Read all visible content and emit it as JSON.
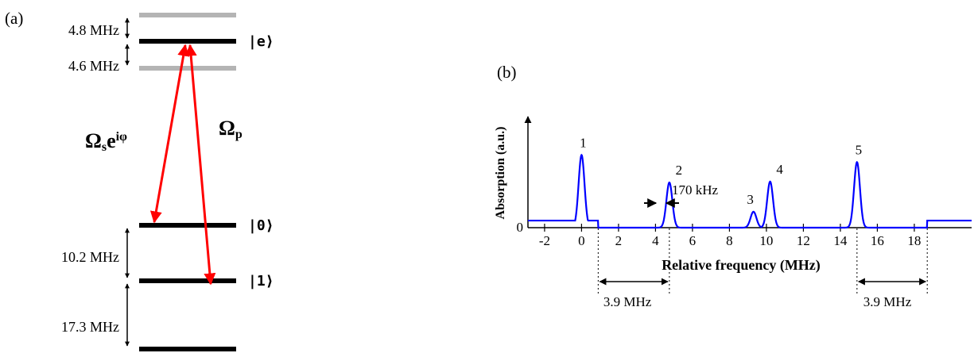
{
  "panel_a": {
    "label": "(a)",
    "states": {
      "e": "|e⟩",
      "zero": "|0⟩",
      "one": "|1⟩"
    },
    "splittings": {
      "upper": "4.8 MHz",
      "lower": "4.6 MHz",
      "ground_01": "10.2 MHz",
      "ground_1b": "17.3 MHz"
    },
    "couplings": {
      "signal": {
        "base": "Ω",
        "sub": "s",
        "e": "e",
        "exp": "iφ"
      },
      "probe": {
        "base": "Ω",
        "sub": "p"
      }
    },
    "colors": {
      "level": "#000000",
      "sublevel": "#b4b4b4",
      "transition": "#ff0000"
    }
  },
  "panel_b": {
    "label": "(b)",
    "linewidth_label": "170 kHz",
    "gap_left": "3.9 MHz",
    "gap_right": "3.9 MHz",
    "colors": {
      "trace": "#0000ff",
      "axis": "#000000"
    }
  },
  "chart_data": {
    "type": "line",
    "xlabel": "Relative frequency (MHz)",
    "ylabel": "Absorption (a.u.)",
    "xlim": [
      -2.9,
      21.1
    ],
    "ylim": [
      0,
      1.2
    ],
    "x_ticks": [
      -2,
      0,
      2,
      4,
      6,
      8,
      10,
      12,
      14,
      16,
      18
    ],
    "y_ticks": [
      0
    ],
    "baseline_level": 0.08,
    "baseline_ranges": [
      [
        -2.9,
        0.9
      ],
      [
        18.7,
        21.1
      ]
    ],
    "peaks": [
      {
        "label": "1",
        "center": 0.0,
        "height": 0.82
      },
      {
        "label": "2",
        "center": 4.75,
        "height": 0.51
      },
      {
        "label": "3",
        "center": 9.3,
        "height": 0.18
      },
      {
        "label": "4",
        "center": 10.2,
        "height": 0.52
      },
      {
        "label": "5",
        "center": 14.9,
        "height": 0.74
      }
    ],
    "grid": false
  }
}
